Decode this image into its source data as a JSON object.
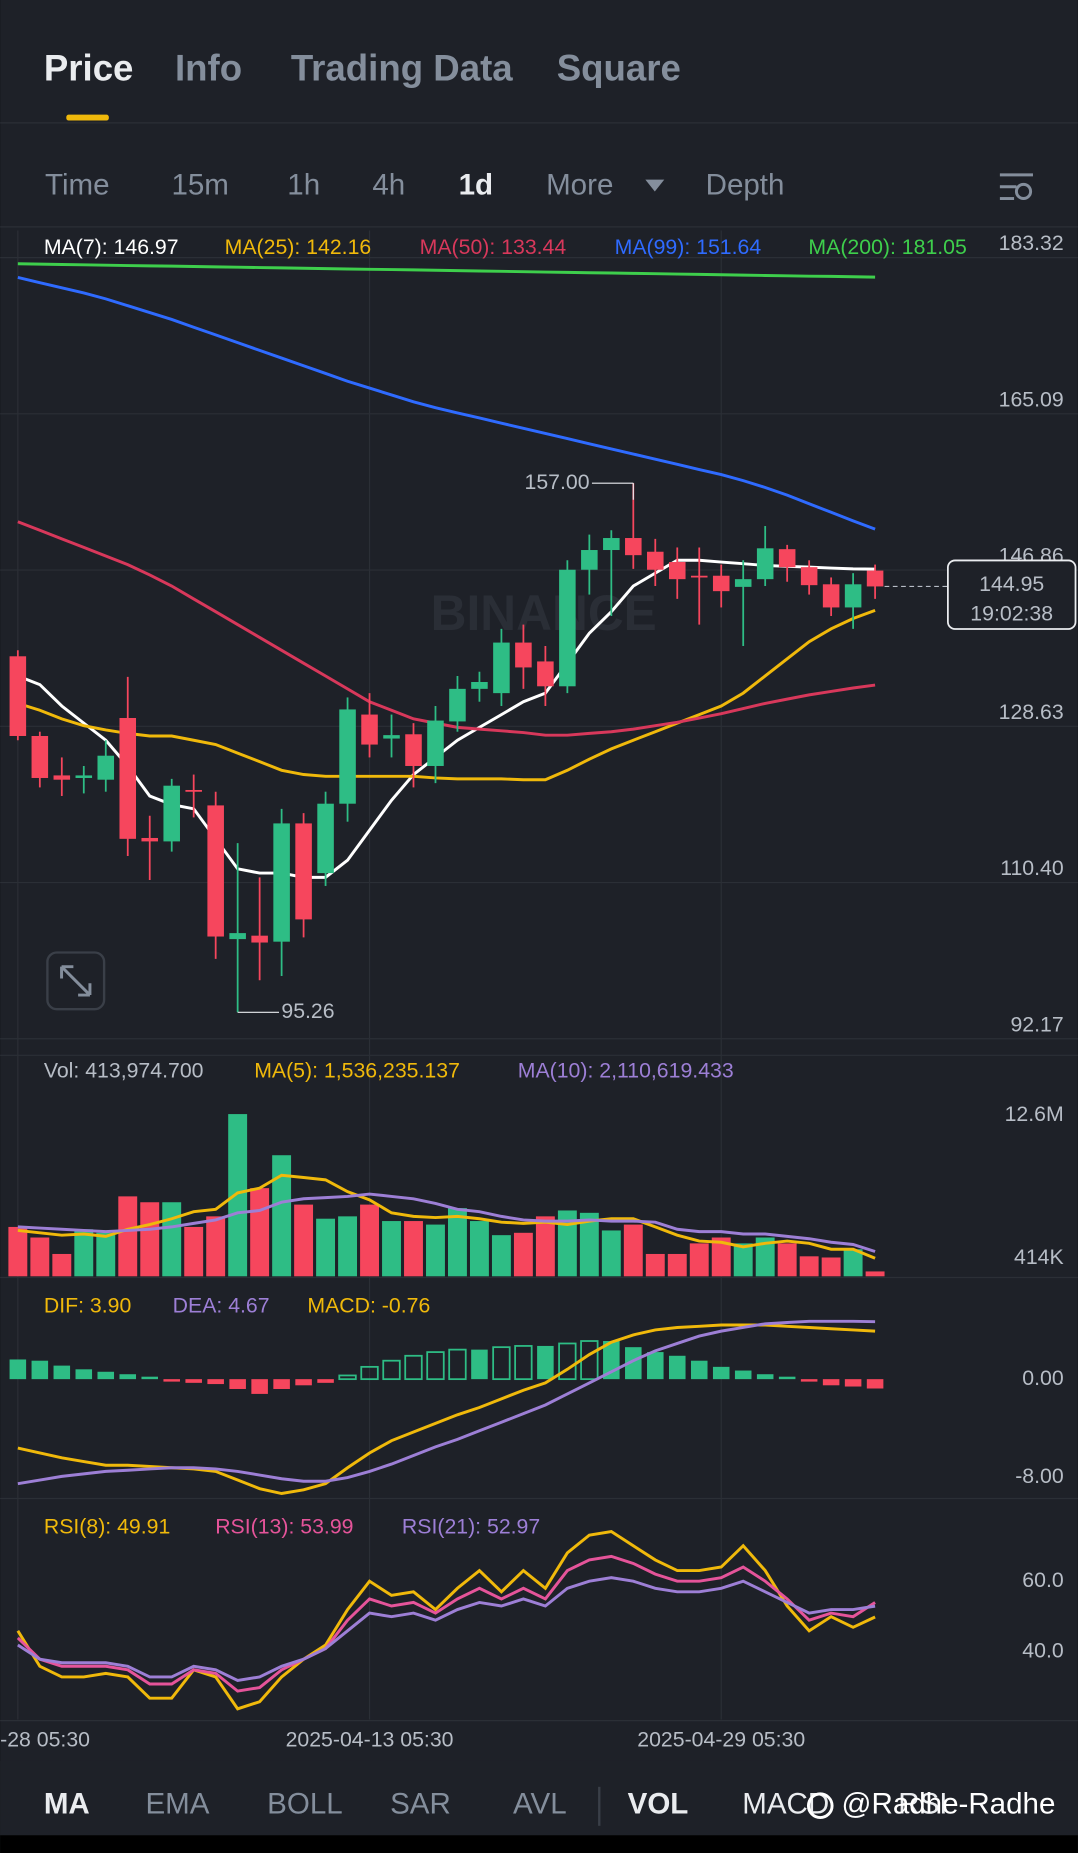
{
  "tabs": [
    "Price",
    "Info",
    "Trading Data",
    "Square"
  ],
  "intervals": [
    "Time",
    "15m",
    "1h",
    "4h",
    "1d",
    "More",
    "Depth"
  ],
  "indicators": [
    "MA",
    "EMA",
    "BOLL",
    "SAR",
    "AVL",
    "VOL",
    "MACD",
    "RSI"
  ],
  "watermark": "@Radhe-Radhe",
  "logo": "BINANCE",
  "chart_data": [
    {
      "type": "candlestick",
      "grid": true,
      "up_color": "#2ebd85",
      "down_color": "#f6465d",
      "categories": [
        "-28 05:30",
        null,
        null,
        null,
        null,
        null,
        null,
        null,
        null,
        null,
        null,
        null,
        null,
        null,
        null,
        null,
        "2025-04-13 05:30",
        null,
        null,
        null,
        null,
        null,
        null,
        null,
        null,
        null,
        null,
        null,
        null,
        null,
        null,
        null,
        "2025-04-29 05:30",
        null,
        null,
        null,
        null,
        null,
        null,
        null
      ],
      "open": [
        136.8,
        127.5,
        122.9,
        122.6,
        122.4,
        129.6,
        115.6,
        115.2,
        121.2,
        119.4,
        103.8,
        104.2,
        103.5,
        117.3,
        111.5,
        119.6,
        130,
        127.2,
        127.7,
        124,
        129.2,
        133,
        132.5,
        138.4,
        136.2,
        133.3,
        146.9,
        149.2,
        150.6,
        149,
        147.8,
        146.2,
        146.2,
        144.9,
        145.8,
        149.3,
        147.2,
        145.2,
        142.5,
        146.8
      ],
      "high": [
        137.5,
        128,
        125,
        124,
        127,
        134.4,
        118.2,
        122.5,
        123,
        121,
        115,
        111,
        119,
        118.5,
        121,
        132,
        132.5,
        130,
        129,
        131,
        134.5,
        135,
        140,
        140.5,
        138,
        148,
        151,
        151.5,
        157,
        150.5,
        149.5,
        149.5,
        147.5,
        148,
        152,
        149.8,
        148,
        146,
        146.5,
        147.5
      ],
      "low": [
        127,
        121.5,
        120.5,
        120.8,
        121,
        113.5,
        110.7,
        114,
        118,
        101.5,
        95.26,
        99,
        99.5,
        104,
        110,
        117.5,
        125,
        125,
        121.5,
        122,
        128,
        131.5,
        131,
        133,
        131,
        132.5,
        144,
        141.5,
        147,
        145,
        143.5,
        140.5,
        142.5,
        138,
        145,
        145.5,
        144,
        141.5,
        140,
        143.5
      ],
      "close": [
        127.5,
        122.6,
        122.4,
        122.9,
        125.2,
        115.5,
        115.2,
        121.7,
        121,
        104.1,
        104.5,
        103.4,
        117.3,
        106.1,
        119.6,
        130.6,
        126.5,
        127.6,
        124,
        129.3,
        133,
        133.8,
        138.4,
        135.5,
        133.3,
        146.9,
        149.2,
        150.6,
        148.6,
        146.9,
        145.8,
        146.1,
        144.4,
        145.8,
        149.4,
        147.2,
        145.1,
        142.5,
        145.2,
        144.95
      ],
      "series": [
        {
          "name": "MA(7): 146.97",
          "color": "#ffffff",
          "values": [
            134.5,
            133.5,
            131,
            129,
            127,
            124,
            120.5,
            119.5,
            119,
            115.5,
            112,
            111.5,
            111.5,
            111,
            111,
            113,
            116.5,
            120,
            123,
            125,
            127,
            128.5,
            130,
            131.5,
            132.5,
            136,
            139.5,
            142,
            145,
            146.5,
            148,
            148,
            147.8,
            147.6,
            147.4,
            147.3,
            147.2,
            147.1,
            147,
            146.97
          ]
        },
        {
          "name": "MA(25): 142.16",
          "color": "#f0b90b",
          "values": [
            131.3,
            130.5,
            129.5,
            128.7,
            128.2,
            127.8,
            127.5,
            127.5,
            127,
            126.5,
            125.5,
            124.5,
            123.5,
            123,
            122.8,
            122.8,
            122.8,
            122.8,
            122.8,
            122.6,
            122.5,
            122.5,
            122.5,
            122.4,
            122.4,
            123.5,
            124.8,
            126,
            127,
            128,
            129,
            130,
            131,
            132.5,
            134.5,
            136.5,
            138.5,
            140,
            141.2,
            142.16
          ]
        },
        {
          "name": "MA(50): 133.44",
          "color": "#d8385b",
          "values": [
            152.5,
            151.5,
            150.5,
            149.5,
            148.5,
            147.5,
            146.3,
            145,
            143.5,
            142,
            140.5,
            139,
            137.5,
            136,
            134.5,
            133,
            131.5,
            130.5,
            129.5,
            129,
            128.5,
            128.3,
            128.1,
            127.9,
            127.6,
            127.6,
            127.8,
            128,
            128.3,
            128.7,
            129.1,
            129.6,
            130.1,
            130.7,
            131.3,
            131.8,
            132.3,
            132.7,
            133.1,
            133.44
          ]
        },
        {
          "name": "MA(99): 151.64",
          "color": "#2f6bff",
          "values": [
            181,
            180.4,
            179.8,
            179.2,
            178.5,
            177.7,
            176.9,
            176.1,
            175.2,
            174.3,
            173.4,
            172.5,
            171.6,
            170.7,
            169.8,
            168.9,
            168.1,
            167.3,
            166.5,
            165.8,
            165.2,
            164.6,
            164,
            163.4,
            162.8,
            162.2,
            161.6,
            161,
            160.4,
            159.8,
            159.2,
            158.6,
            158,
            157.3,
            156.5,
            155.6,
            154.6,
            153.6,
            152.6,
            151.64
          ]
        },
        {
          "name": "MA(200): 181.05",
          "color": "#3ecf4c",
          "values": [
            182.6,
            182.56,
            182.52,
            182.48,
            182.44,
            182.4,
            182.36,
            182.32,
            182.28,
            182.24,
            182.2,
            182.16,
            182.12,
            182.08,
            182.04,
            182,
            181.96,
            181.92,
            181.88,
            181.84,
            181.8,
            181.76,
            181.72,
            181.68,
            181.64,
            181.6,
            181.56,
            181.52,
            181.48,
            181.44,
            181.4,
            181.36,
            181.32,
            181.28,
            181.24,
            181.2,
            181.16,
            181.12,
            181.08,
            181.05
          ]
        }
      ],
      "ylim": [
        90.24,
        186.49
      ],
      "yticks": [
        183.32,
        165.09,
        146.86,
        128.63,
        {
          "value": 110.4,
          "label": "110.40"
        },
        92.17
      ],
      "max_label": {
        "value": 157,
        "label": "157.00"
      },
      "min_label": {
        "value": 95.26,
        "label": "95.26"
      },
      "last_price": 144.95,
      "countdown": "19:02:38"
    },
    {
      "type": "bar",
      "up_color": "#2ebd85",
      "down_color": "#f6465d",
      "series": [
        {
          "name": "Vol: 413,974.700",
          "kind": "bar",
          "color_by": "candle",
          "color": "#b7bdc6",
          "values": [
            4200000,
            3300000,
            1900000,
            4000000,
            3700000,
            6800000,
            6300000,
            6300000,
            4200000,
            5100000,
            13800000,
            7500000,
            10300000,
            6100000,
            4900000,
            5100000,
            6100000,
            4700000,
            4700000,
            4400000,
            5800000,
            4700000,
            3500000,
            3700000,
            5100000,
            5600000,
            5400000,
            3900000,
            4400000,
            1900000,
            1900000,
            2800000,
            3300000,
            2800000,
            3300000,
            2800000,
            1700000,
            1600000,
            2300000,
            413974.7
          ]
        },
        {
          "name": "MA(5): 1,536,235.137",
          "color": "#f0b90b",
          "values": [
            3900000,
            3700000,
            3500000,
            3600000,
            3400000,
            4000000,
            4400000,
            4900000,
            5500000,
            5700000,
            7100000,
            7500000,
            8600000,
            8400000,
            8200000,
            7200000,
            6500000,
            5400000,
            5100000,
            5000000,
            5100000,
            4900000,
            4600000,
            4500000,
            4600000,
            4400000,
            4700000,
            4900000,
            4900000,
            4200000,
            3500000,
            3000000,
            2900000,
            2500000,
            2800000,
            3000000,
            2800000,
            2300000,
            2300000,
            1536235.137
          ]
        },
        {
          "name": "MA(10): 2,110,619.433",
          "color": "#9d7fd6",
          "values": [
            4200000,
            4100000,
            4000000,
            3900000,
            3800000,
            3900000,
            4000000,
            4200000,
            4500000,
            4800000,
            5400000,
            5600000,
            6300000,
            6600000,
            6700000,
            6800000,
            7000000,
            6800000,
            6600000,
            6200000,
            5700000,
            5500000,
            5100000,
            4800000,
            4700000,
            4700000,
            4800000,
            4700000,
            4700000,
            4600000,
            4000000,
            3800000,
            3800000,
            3600000,
            3600000,
            3400000,
            3200000,
            2900000,
            2700000,
            2110619.433
          ]
        }
      ],
      "ylim": [
        0,
        18800000
      ],
      "yticks": [
        {
          "value": 12600000,
          "label": "12.6M"
        },
        {
          "value": 413974.7,
          "label": "414K"
        }
      ]
    },
    {
      "type": "bar",
      "up_color": "#2ebd85",
      "down_color": "#f6465d",
      "series": [
        {
          "name": "DIF: 3.90",
          "color": "#f0b90b",
          "values": [
            -5.6,
            -6,
            -6.4,
            -6.7,
            -7,
            -7,
            -7.1,
            -7.2,
            -7.3,
            -7.5,
            -8.2,
            -8.9,
            -9.3,
            -9,
            -8.5,
            -7.2,
            -6,
            -5,
            -4.3,
            -3.6,
            -2.9,
            -2.3,
            -1.6,
            -0.9,
            -0.3,
            0.8,
            2,
            3,
            3.6,
            4,
            4.2,
            4.3,
            4.4,
            4.4,
            4.4,
            4.3,
            4.2,
            4.1,
            4,
            3.9
          ]
        },
        {
          "name": "DEA: 4.67",
          "color": "#9d7fd6",
          "values": [
            -8.5,
            -8.2,
            -7.9,
            -7.7,
            -7.5,
            -7.4,
            -7.3,
            -7.2,
            -7.2,
            -7.3,
            -7.5,
            -7.8,
            -8.1,
            -8.3,
            -8.3,
            -8,
            -7.5,
            -6.9,
            -6.2,
            -5.5,
            -4.9,
            -4.2,
            -3.5,
            -2.8,
            -2.1,
            -1.2,
            -0.3,
            0.6,
            1.5,
            2.3,
            2.9,
            3.5,
            3.9,
            4.2,
            4.5,
            4.6,
            4.7,
            4.7,
            4.7,
            4.67
          ]
        },
        {
          "name": "MACD: -0.76",
          "kind": "bar",
          "color_by": "sign",
          "color": "#f0b90b",
          "values": [
            1.6,
            1.5,
            1.1,
            0.8,
            0.6,
            0.4,
            0.2,
            -0.2,
            -0.3,
            -0.4,
            -0.8,
            -1.2,
            -0.8,
            -0.5,
            -0.3,
            0.3,
            1,
            1.5,
            1.9,
            2.2,
            2.4,
            2.4,
            2.6,
            2.7,
            2.7,
            2.9,
            3.1,
            3.1,
            2.6,
            2.2,
            1.9,
            1.5,
            1,
            0.7,
            0.4,
            0.2,
            -0.2,
            -0.5,
            -0.6,
            -0.76
          ]
        }
      ],
      "ylim": [
        -9.7,
        7.4
      ],
      "yticks": [
        {
          "value": 0,
          "label": "0.00"
        },
        {
          "value": -8,
          "label": "-8.00"
        }
      ]
    },
    {
      "type": "line",
      "series": [
        {
          "name": "RSI(8): 49.91",
          "color": "#f0b90b",
          "values": [
            46,
            36,
            33,
            33,
            34,
            33,
            27,
            27,
            35,
            33,
            24,
            26,
            33,
            38,
            42,
            52,
            60,
            56,
            57,
            52,
            58,
            63,
            57,
            63,
            58,
            68,
            73,
            74,
            70,
            66,
            63,
            63,
            64,
            70,
            63,
            53,
            46,
            50,
            47,
            49.91
          ]
        },
        {
          "name": "RSI(13): 53.99",
          "color": "#e5549a",
          "values": [
            44,
            38,
            36,
            36,
            36,
            35,
            31,
            31,
            35,
            34,
            29,
            30,
            35,
            38,
            41,
            49,
            55,
            53,
            54,
            51,
            55,
            58,
            55,
            58,
            55,
            63,
            66,
            67,
            65,
            62,
            60,
            60,
            61,
            64,
            60,
            55,
            49,
            51,
            50,
            53.99
          ]
        },
        {
          "name": "RSI(21): 52.97",
          "color": "#9d7fd6",
          "values": [
            42,
            38,
            37,
            37,
            37,
            36,
            33,
            33,
            36,
            35,
            32,
            33,
            36,
            38,
            41,
            46,
            51,
            50,
            51,
            49,
            52,
            54,
            53,
            55,
            53,
            58,
            60,
            61,
            60,
            58,
            57,
            57,
            58,
            60,
            57,
            54,
            51,
            52,
            52,
            52.97
          ]
        }
      ],
      "ylim": [
        21,
        81
      ],
      "yticks": [
        {
          "value": 60,
          "label": "60.0"
        },
        {
          "value": 40,
          "label": "40.0"
        }
      ]
    }
  ]
}
